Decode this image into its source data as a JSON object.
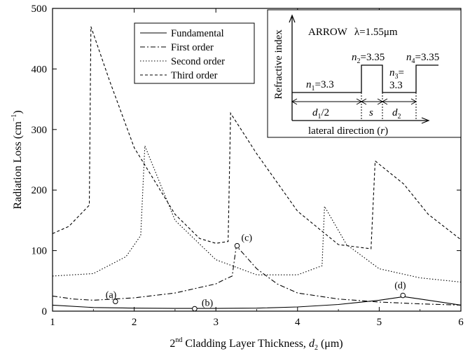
{
  "chart_data": {
    "type": "line",
    "xlabel": {
      "prefix": "2",
      "sup": "nd",
      "main": " Cladding Layer Thickness, ",
      "var": "d",
      "sub": "2",
      "unit": " (μm)"
    },
    "ylabel": {
      "main": "Radiation Loss (cm",
      "sup": "−1",
      "end": ")"
    },
    "xlim": [
      1,
      6
    ],
    "ylim": [
      0,
      500
    ],
    "xticks": [
      "1",
      "2",
      "3",
      "4",
      "5",
      "6"
    ],
    "yticks": [
      "0",
      "100",
      "200",
      "300",
      "400",
      "500"
    ],
    "grid": false,
    "legend_position": "top-center",
    "series": [
      {
        "name": "Fundamental",
        "dash": "none",
        "x": [
          1.0,
          1.5,
          2.0,
          2.5,
          3.0,
          3.5,
          4.0,
          4.5,
          5.0,
          5.3,
          5.5,
          6.0
        ],
        "y": [
          10,
          6,
          5,
          4.5,
          4.5,
          5,
          7,
          11,
          18,
          24,
          20,
          10
        ]
      },
      {
        "name": "First order",
        "dash": "7,3,2,3",
        "x": [
          1.0,
          1.25,
          1.5,
          2.0,
          2.5,
          3.0,
          3.1,
          3.2,
          3.25,
          3.5,
          3.75,
          4.0,
          4.5,
          5.0,
          5.5,
          6.0
        ],
        "y": [
          25,
          20,
          18,
          22,
          30,
          45,
          52,
          58,
          108,
          70,
          45,
          30,
          20,
          15,
          12,
          10
        ]
      },
      {
        "name": "Second order",
        "dash": "1.5,2.5",
        "x": [
          1.0,
          1.5,
          1.9,
          2.08,
          2.13,
          2.5,
          3.0,
          3.5,
          4.0,
          4.3,
          4.33,
          4.6,
          5.0,
          5.5,
          6.0
        ],
        "y": [
          58,
          62,
          90,
          125,
          273,
          150,
          85,
          60,
          60,
          75,
          173,
          110,
          70,
          55,
          48
        ]
      },
      {
        "name": "Third order",
        "dash": "4,3",
        "x": [
          1.0,
          1.2,
          1.45,
          1.47,
          1.7,
          2.0,
          2.5,
          2.8,
          3.0,
          3.15,
          3.18,
          3.5,
          4.0,
          4.5,
          4.9,
          4.95,
          5.3,
          5.6,
          6.0
        ],
        "y": [
          128,
          140,
          175,
          470,
          380,
          270,
          160,
          120,
          112,
          115,
          327,
          260,
          165,
          110,
          103,
          248,
          210,
          160,
          118
        ]
      }
    ],
    "points": [
      {
        "label": "(a)",
        "x": 1.77,
        "y": 16
      },
      {
        "label": "(b)",
        "x": 2.74,
        "y": 4
      },
      {
        "label": "(c)",
        "x": 3.26,
        "y": 108
      },
      {
        "label": "(d)",
        "x": 5.29,
        "y": 26
      }
    ]
  },
  "inset": {
    "title": "ARROW",
    "lambda_expr": "λ=1.55μm",
    "ylabel": "Refractive index",
    "xlabel": {
      "main": "lateral direction (",
      "var": "r",
      "end": ")"
    },
    "n1": {
      "var": "n",
      "sub": "1",
      "val": "=3.3"
    },
    "n2": {
      "var": "n",
      "sub": "2",
      "val": "=3.35"
    },
    "n3": {
      "var": "n",
      "sub": "3",
      "val": "=",
      "val2": "3.3"
    },
    "n4": {
      "var": "n",
      "sub": "4",
      "val": "=3.35"
    },
    "d1": {
      "var": "d",
      "sub": "1",
      "val": "/2"
    },
    "s": "s",
    "d2": {
      "var": "d",
      "sub": "2"
    }
  }
}
